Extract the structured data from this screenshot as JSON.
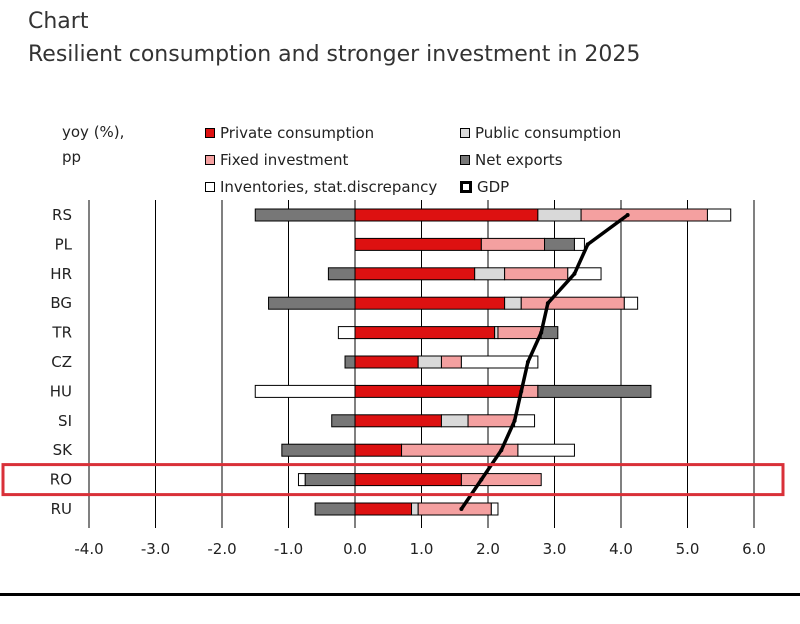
{
  "header": {
    "label": "Chart",
    "title": "Resilient consumption and stronger investment in 2025"
  },
  "colors": {
    "private": "#dd1111",
    "public": "#d9d9d9",
    "fixed": "#f4a0a0",
    "net": "#777777",
    "inventories": "#ffffff",
    "gdp": "#000000",
    "highlight": "#d93038"
  },
  "chart_data": {
    "type": "bar",
    "orientation": "horizontal",
    "stacked": true,
    "ylabel_lines": [
      "yoy (%),",
      "pp"
    ],
    "xlim": [
      -4,
      6
    ],
    "xticks": [
      "-4.0",
      "-3.0",
      "-2.0",
      "-1.0",
      "0.0",
      "1.0",
      "2.0",
      "3.0",
      "4.0",
      "5.0",
      "6.0"
    ],
    "categories": [
      "RS",
      "PL",
      "HR",
      "BG",
      "TR",
      "CZ",
      "HU",
      "SI",
      "SK",
      "RO",
      "RU"
    ],
    "highlighted_category": "RO",
    "series": [
      {
        "key": "private",
        "name": "Private consumption",
        "values": [
          2.75,
          1.9,
          1.8,
          2.25,
          2.1,
          0.95,
          2.5,
          1.3,
          0.7,
          1.6,
          0.85
        ]
      },
      {
        "key": "public",
        "name": "Public consumption",
        "values": [
          0.65,
          0.0,
          0.45,
          0.25,
          0.05,
          0.35,
          0.0,
          0.4,
          0.0,
          0.0,
          0.1
        ]
      },
      {
        "key": "fixed",
        "name": "Fixed investment",
        "values": [
          1.9,
          0.95,
          0.95,
          1.55,
          0.65,
          0.3,
          0.25,
          0.7,
          1.75,
          1.2,
          1.1
        ]
      },
      {
        "key": "net",
        "name": "Net exports",
        "values": [
          -1.5,
          0.45,
          -0.4,
          -1.3,
          0.25,
          -0.15,
          1.7,
          -0.35,
          -1.1,
          -0.75,
          -0.6
        ]
      },
      {
        "key": "inventories",
        "name": "Inventories, stat.discrepancy",
        "values": [
          0.35,
          0.15,
          0.5,
          0.2,
          -0.25,
          1.15,
          -1.5,
          0.3,
          0.85,
          -0.1,
          0.1
        ]
      }
    ],
    "gdp": {
      "name": "GDP",
      "values": [
        4.1,
        3.5,
        3.3,
        2.9,
        2.8,
        2.6,
        2.5,
        2.4,
        2.2,
        1.9,
        1.6
      ]
    },
    "grid": {
      "vertical": true
    },
    "legend_position": "top"
  }
}
